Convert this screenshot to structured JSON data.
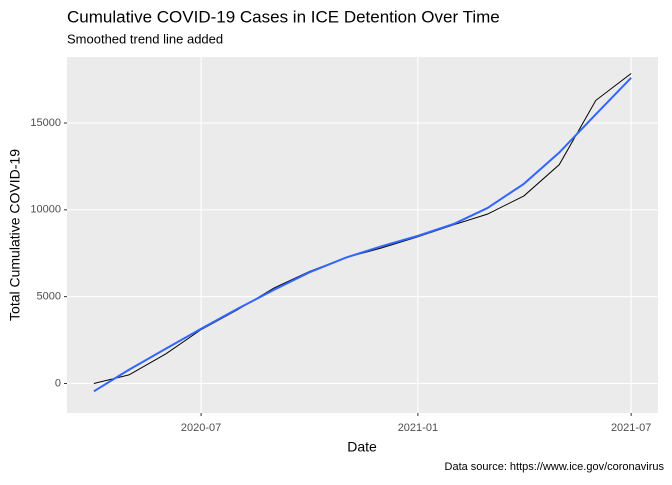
{
  "chart_data": {
    "type": "line",
    "title": "Cumulative COVID-19 Cases in ICE Detention Over Time",
    "subtitle": "Smoothed trend line added",
    "x_label": "Date",
    "y_label": "Total Cumulative COVID-19",
    "caption": "Data source: https://www.ice.gov/coronavirus",
    "x": [
      "2020-04",
      "2020-05",
      "2020-06",
      "2020-07",
      "2020-08",
      "2020-09",
      "2020-10",
      "2020-11",
      "2020-12",
      "2021-01",
      "2021-02",
      "2021-03",
      "2021-04",
      "2021-05",
      "2021-06",
      "2021-07"
    ],
    "series": [
      {
        "color": "#000000",
        "values": [
          0,
          500,
          1700,
          3100,
          4250,
          5500,
          6450,
          7250,
          7800,
          8450,
          9150,
          9750,
          10800,
          12600,
          16300,
          17850
        ]
      },
      {
        "color": "#3366FF",
        "values": [
          -450,
          800,
          2000,
          3150,
          4300,
          5400,
          6400,
          7250,
          7900,
          8500,
          9200,
          10100,
          11500,
          13300,
          15500,
          17600
        ]
      }
    ],
    "xticks": [
      "2020-07",
      "2021-01",
      "2021-07"
    ],
    "ylim": [
      -1700,
      18800
    ],
    "yticks": [
      0,
      5000,
      10000,
      15000
    ],
    "grid": true
  }
}
